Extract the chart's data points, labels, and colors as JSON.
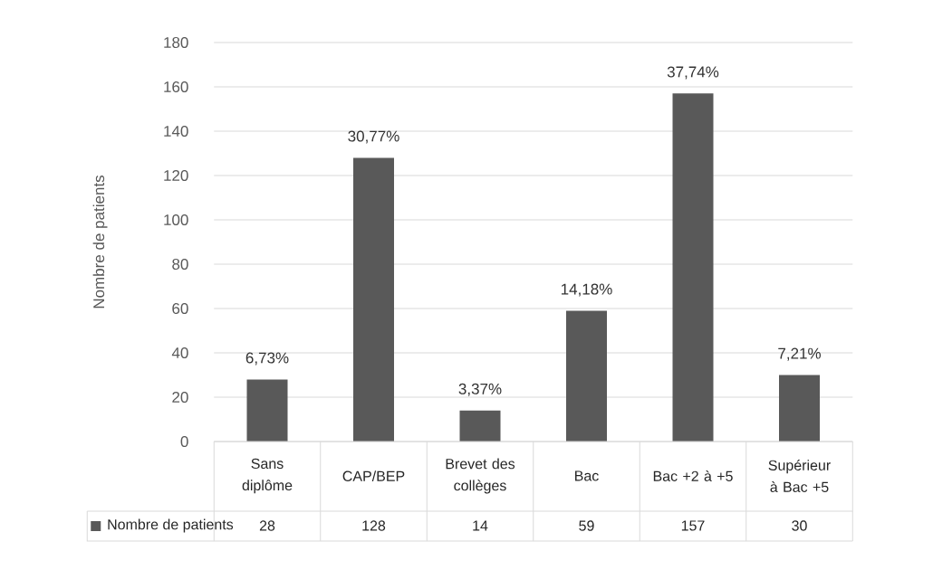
{
  "chart_data": {
    "type": "bar",
    "ylabel": "Nombre de patients",
    "categories": [
      "Sans diplôme",
      "CAP/BEP",
      "Brevet des collèges",
      "Bac",
      "Bac +2 à +5",
      "Supérieur à Bac +5"
    ],
    "series": [
      {
        "name": "Nombre de patients",
        "color": "#595959",
        "values": [
          28,
          128,
          14,
          59,
          157,
          30
        ],
        "value_labels": [
          "28",
          "128",
          "14",
          "59",
          "157",
          "30"
        ]
      }
    ],
    "annotations": [
      {
        "text": "6,73%",
        "x": "Sans diplôme",
        "y": 28
      },
      {
        "text": "30,77%",
        "x": "CAP/BEP",
        "y": 128
      },
      {
        "text": "3,37%",
        "x": "Brevet des collèges",
        "y": 14
      },
      {
        "text": "14,18%",
        "x": "Bac",
        "y": 59
      },
      {
        "text": "37,74%",
        "x": "Bac +2 à +5",
        "y": 157
      },
      {
        "text": "7,21%",
        "x": "Supérieur à Bac +5",
        "y": 30
      }
    ],
    "ylim": [
      0,
      180
    ],
    "yticks": [
      0,
      20,
      40,
      60,
      80,
      100,
      120,
      140,
      160,
      180
    ],
    "grid": "y",
    "legend": "bottom"
  }
}
